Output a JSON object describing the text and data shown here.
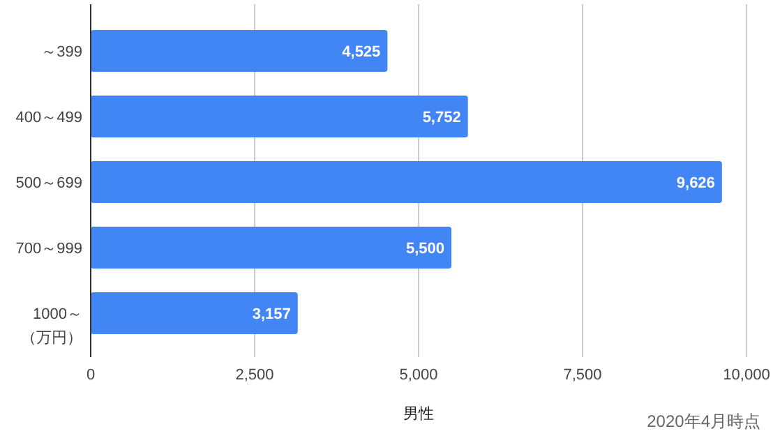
{
  "chart_data": {
    "type": "bar",
    "orientation": "horizontal",
    "categories": [
      "～399",
      "400～499",
      "500～699",
      "700～999",
      "1000～"
    ],
    "values": [
      4525,
      5752,
      9626,
      5500,
      3157
    ],
    "color": "#4285f4",
    "value_labels": [
      "4,525",
      "5,752",
      "9,626",
      "5,500",
      "3,157"
    ],
    "ylabel": "（万円）",
    "xlabel": "男性",
    "annotations": [
      "2020年4月時点"
    ],
    "xlim": [
      0,
      10000
    ],
    "xticks": [
      0,
      {
        "value": 2500,
        "label": "2,500"
      },
      {
        "value": 5000,
        "label": "5,000"
      },
      {
        "value": 7500,
        "label": "7,500"
      },
      {
        "value": 10000,
        "label": "10,000"
      }
    ],
    "grid": "x"
  }
}
